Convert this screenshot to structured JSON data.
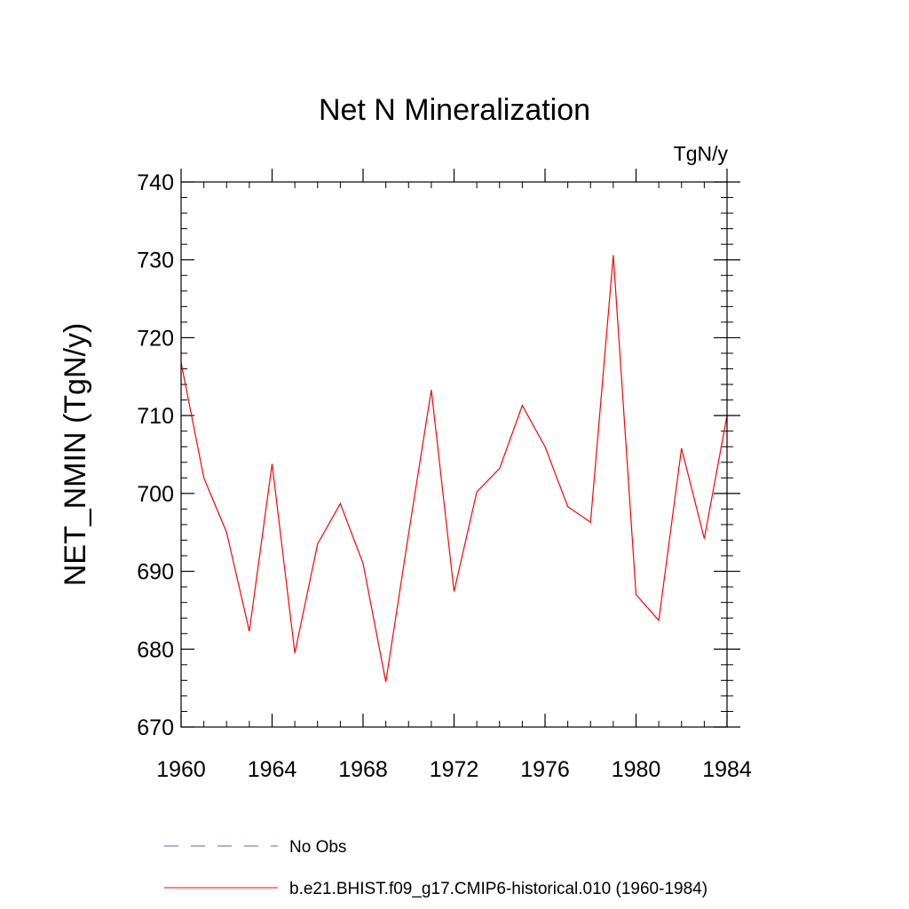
{
  "chart_data": {
    "type": "line",
    "title": "Net N Mineralization",
    "units": "TgN/y",
    "ylabel": "NET_NMIN  (TgN/y)",
    "xlabel": "",
    "xlim": [
      1960,
      1984
    ],
    "ylim": [
      670,
      740
    ],
    "x_ticks": [
      1960,
      1964,
      1968,
      1972,
      1976,
      1980,
      1984
    ],
    "y_ticks": [
      670,
      680,
      690,
      700,
      710,
      720,
      730,
      740
    ],
    "x_minor_step": 1,
    "y_minor_step": 2,
    "grid": false,
    "legend_position": "bottom",
    "series": [
      {
        "name": "b.e21.BHIST.f09_g17.CMIP6-historical.010 (1960-1984)",
        "color": "#ff0000",
        "style": "solid",
        "x": [
          1960,
          1961,
          1962,
          1963,
          1964,
          1965,
          1966,
          1967,
          1968,
          1969,
          1970,
          1971,
          1972,
          1973,
          1974,
          1975,
          1976,
          1977,
          1978,
          1979,
          1980,
          1981,
          1982,
          1983,
          1984
        ],
        "y": [
          716.8,
          702.0,
          695.0,
          682.3,
          703.8,
          679.5,
          693.5,
          698.7,
          691.0,
          675.8,
          694.8,
          713.3,
          687.4,
          700.2,
          703.2,
          711.3,
          706.0,
          698.3,
          696.3,
          730.6,
          687.0,
          683.7,
          705.8,
          694.2,
          710.0
        ]
      }
    ],
    "legend": [
      {
        "label": "No Obs",
        "color": "#6060c0",
        "style": "dashed"
      },
      {
        "label": "b.e21.BHIST.f09_g17.CMIP6-historical.010 (1960-1984)",
        "color": "#ff0000",
        "style": "solid"
      }
    ]
  }
}
